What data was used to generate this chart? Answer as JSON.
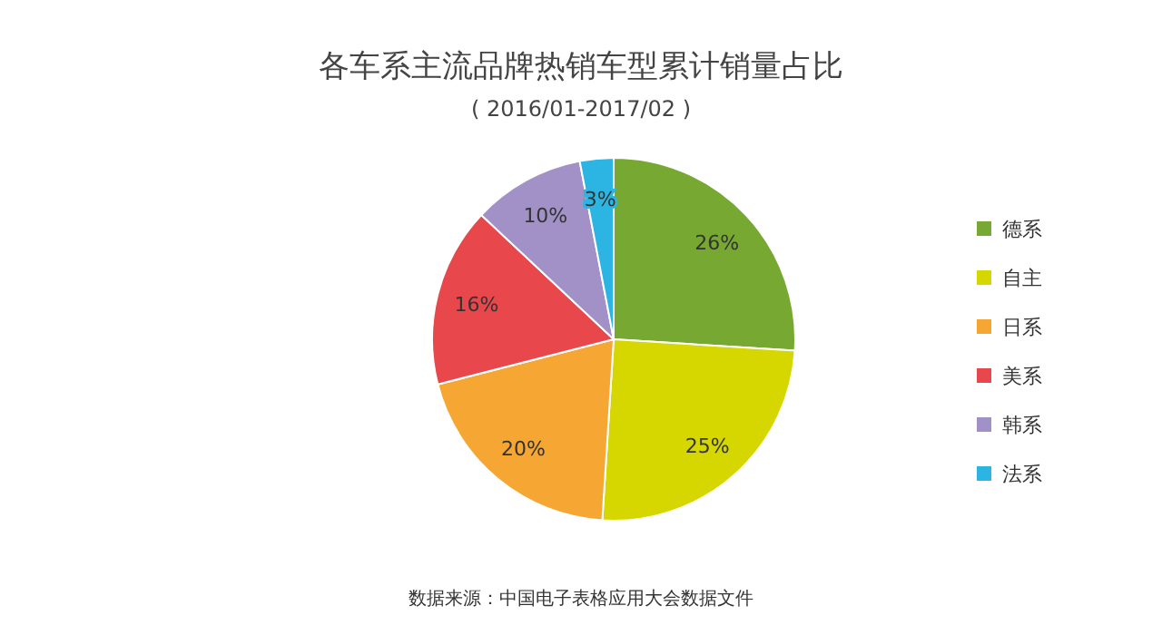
{
  "chart_data": {
    "type": "pie",
    "title": "各车系主流品牌热销车型累计销量占比",
    "subtitle": "( 2016/01-2017/02 )",
    "categories": [
      "德系",
      "自主",
      "日系",
      "美系",
      "韩系",
      "法系"
    ],
    "values": [
      26,
      25,
      20,
      16,
      10,
      3
    ],
    "colors": [
      "#77a832",
      "#d6d600",
      "#f5a633",
      "#e8474b",
      "#a291c6",
      "#2cb5e2"
    ],
    "value_labels": [
      "26%",
      "25%",
      "20%",
      "16%",
      "10%",
      "3%"
    ],
    "legend": "right",
    "annotations": [
      "数据来源：中国电子表格应用大会数据文件"
    ]
  }
}
